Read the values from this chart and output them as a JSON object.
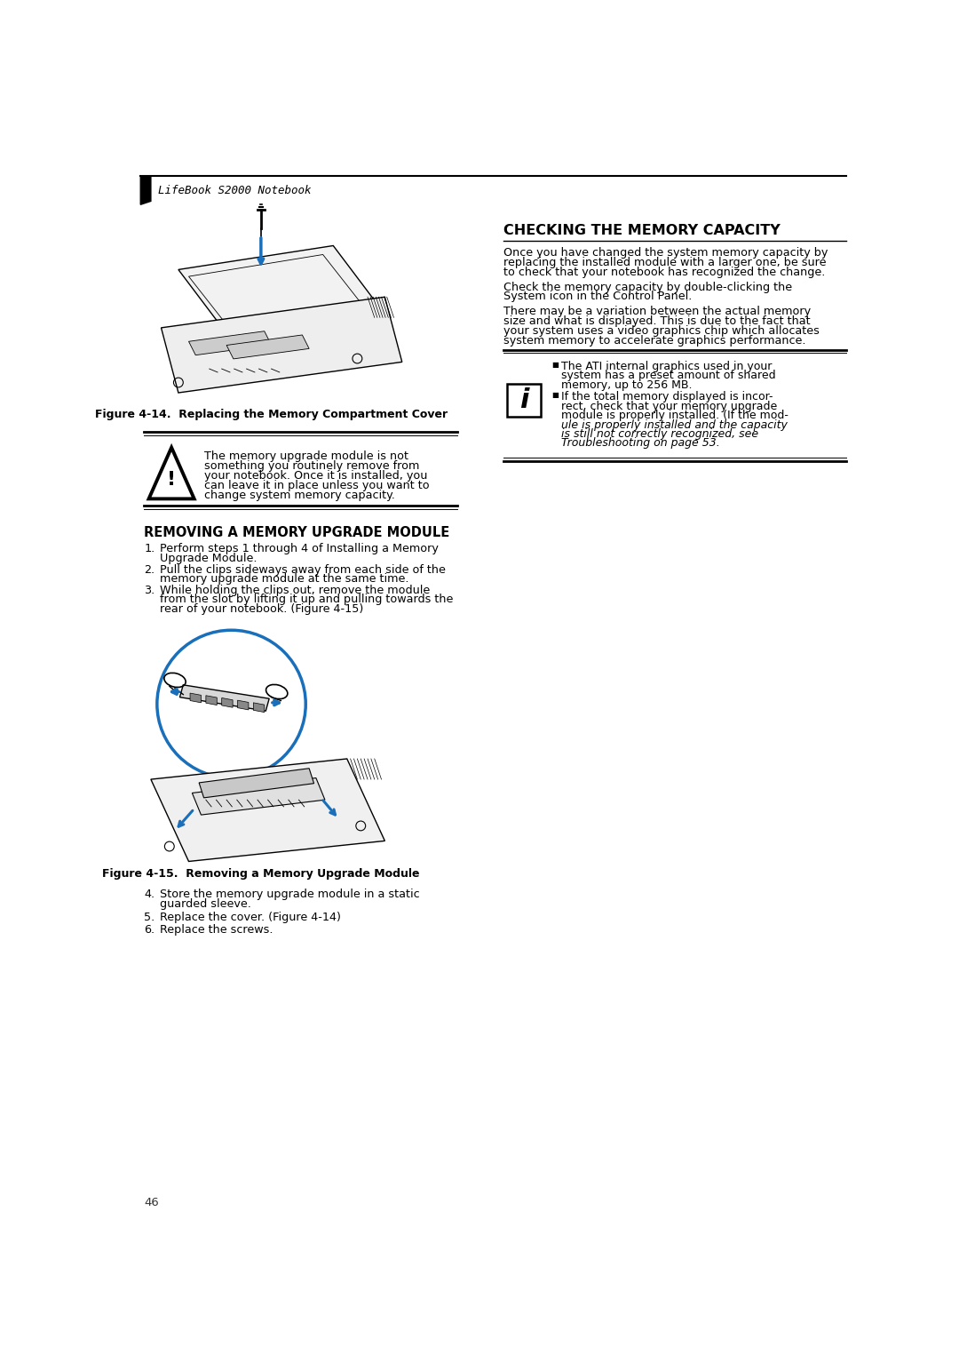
{
  "page_number": "46",
  "header_text": "LifeBook S2000 Notebook",
  "bg_color": "#ffffff",
  "text_color": "#000000",
  "fig14_caption": "Figure 4-14.  Replacing the Memory Compartment Cover",
  "fig15_caption": "Figure 4-15.  Removing a Memory Upgrade Module",
  "warning_lines": [
    "The memory upgrade module is not",
    "something you routinely remove from",
    "your notebook. Once it is installed, you",
    "can leave it in place unless you want to",
    "change system memory capacity."
  ],
  "section_removing_title": "REMOVING A MEMORY UPGRADE MODULE",
  "step1_lines": [
    "Perform steps 1 through 4 of Installing a Memory",
    "Upgrade Module."
  ],
  "step2_lines": [
    "Pull the clips sideways away from each side of the",
    "memory upgrade module at the same time."
  ],
  "step3_lines": [
    "While holding the clips out, remove the module",
    "from the slot by lifting it up and pulling towards the",
    "rear of your notebook. (Figure 4-15)"
  ],
  "step4": "Store the memory upgrade module in a static guarded sleeve.",
  "step5": "Replace the cover. (Figure 4-14)",
  "step6": "Replace the screws.",
  "section_checking_title": "CHECKING THE MEMORY CAPACITY",
  "checking_para1_lines": [
    "Once you have changed the system memory capacity by",
    "replacing the installed module with a larger one, be sure",
    "to check that your notebook has recognized the change."
  ],
  "checking_para2_lines": [
    "Check the memory capacity by double-clicking the",
    "System icon in the Control Panel."
  ],
  "checking_para3_lines": [
    "There may be a variation between the actual memory",
    "size and what is displayed. This is due to the fact that",
    "your system uses a video graphics chip which allocates",
    "system memory to accelerate graphics performance."
  ],
  "info_b1_lines": [
    "The ATI internal graphics used in your",
    "system has a preset amount of shared",
    "memory, up to 256 MB."
  ],
  "info_b2_lines_normal": [
    "If the total memory displayed is incor-",
    "rect, check that your memory upgrade",
    "module is properly installed. (If the mod-"
  ],
  "info_b2_lines_italic": [
    "ule is properly installed and the capacity",
    "is still not correctly recognized, see",
    "Troubleshooting on page 53."
  ]
}
